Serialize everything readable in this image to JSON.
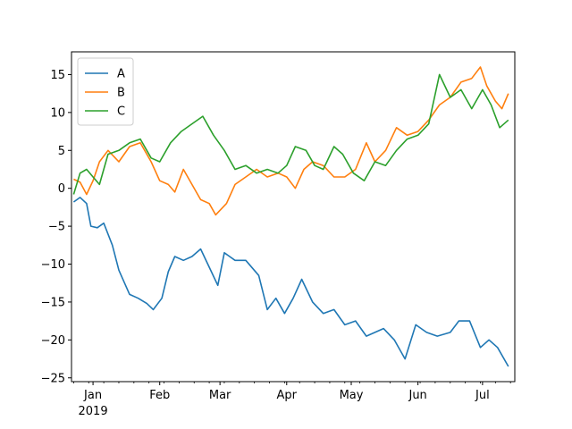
{
  "chart_data": {
    "type": "line",
    "title": "",
    "xlabel": "",
    "ylabel": "",
    "x_start": "2018-12-23",
    "x_end": "2019-07-13",
    "x_frequency": "daily",
    "xlim": [
      "2018-12-22",
      "2019-07-16"
    ],
    "ylim": [
      -25.5,
      18
    ],
    "x_major_ticks": [
      {
        "date": "2019-01-01",
        "label": "Jan",
        "sublabel": "2019"
      },
      {
        "date": "2019-02-01",
        "label": "Feb",
        "sublabel": ""
      },
      {
        "date": "2019-03-01",
        "label": "Mar",
        "sublabel": ""
      },
      {
        "date": "2019-04-01",
        "label": "Apr",
        "sublabel": ""
      },
      {
        "date": "2019-05-01",
        "label": "May",
        "sublabel": ""
      },
      {
        "date": "2019-06-01",
        "label": "Jun",
        "sublabel": ""
      },
      {
        "date": "2019-07-01",
        "label": "Jul",
        "sublabel": ""
      }
    ],
    "y_ticks": [
      {
        "value": -25,
        "label": "−25"
      },
      {
        "value": -20,
        "label": "−20"
      },
      {
        "value": -15,
        "label": "−15"
      },
      {
        "value": -10,
        "label": "−10"
      },
      {
        "value": -5,
        "label": "−5"
      },
      {
        "value": 0,
        "label": "0"
      },
      {
        "value": 5,
        "label": "5"
      },
      {
        "value": 10,
        "label": "10"
      },
      {
        "value": 15,
        "label": "15"
      }
    ],
    "grid": false,
    "legend_position": "top-left",
    "series": [
      {
        "name": "A",
        "color": "#1f77b4",
        "points": [
          [
            "2018-12-23",
            -1.8
          ],
          [
            "2018-12-26",
            -1.2
          ],
          [
            "2018-12-29",
            -2.0
          ],
          [
            "2018-12-31",
            -5.0
          ],
          [
            "2019-01-03",
            -5.2
          ],
          [
            "2019-01-06",
            -4.6
          ],
          [
            "2019-01-10",
            -7.5
          ],
          [
            "2019-01-13",
            -10.8
          ],
          [
            "2019-01-18",
            -14.0
          ],
          [
            "2019-01-22",
            -14.5
          ],
          [
            "2019-01-26",
            -15.2
          ],
          [
            "2019-01-29",
            -16.0
          ],
          [
            "2019-02-02",
            -14.5
          ],
          [
            "2019-02-05",
            -11.0
          ],
          [
            "2019-02-08",
            -9.0
          ],
          [
            "2019-02-12",
            -9.5
          ],
          [
            "2019-02-16",
            -9.0
          ],
          [
            "2019-02-20",
            -8.0
          ],
          [
            "2019-02-25",
            -11.0
          ],
          [
            "2019-02-28",
            -12.8
          ],
          [
            "2019-03-03",
            -8.5
          ],
          [
            "2019-03-08",
            -9.5
          ],
          [
            "2019-03-13",
            -9.5
          ],
          [
            "2019-03-19",
            -11.5
          ],
          [
            "2019-03-23",
            -16.0
          ],
          [
            "2019-03-27",
            -14.5
          ],
          [
            "2019-03-31",
            -16.5
          ],
          [
            "2019-04-04",
            -14.5
          ],
          [
            "2019-04-08",
            -12.0
          ],
          [
            "2019-04-13",
            -15.0
          ],
          [
            "2019-04-18",
            -16.5
          ],
          [
            "2019-04-23",
            -16.0
          ],
          [
            "2019-04-28",
            -18.0
          ],
          [
            "2019-05-03",
            -17.5
          ],
          [
            "2019-05-08",
            -19.5
          ],
          [
            "2019-05-12",
            -19.0
          ],
          [
            "2019-05-16",
            -18.5
          ],
          [
            "2019-05-21",
            -20.0
          ],
          [
            "2019-05-26",
            -22.5
          ],
          [
            "2019-05-31",
            -18.0
          ],
          [
            "2019-06-05",
            -19.0
          ],
          [
            "2019-06-10",
            -19.5
          ],
          [
            "2019-06-16",
            -19.0
          ],
          [
            "2019-06-20",
            -17.5
          ],
          [
            "2019-06-25",
            -17.5
          ],
          [
            "2019-06-30",
            -21.0
          ],
          [
            "2019-07-04",
            -20.0
          ],
          [
            "2019-07-08",
            -21.0
          ],
          [
            "2019-07-13",
            -23.5
          ]
        ]
      },
      {
        "name": "B",
        "color": "#ff7f0e",
        "points": [
          [
            "2018-12-23",
            1.2
          ],
          [
            "2018-12-26",
            0.8
          ],
          [
            "2018-12-29",
            -0.8
          ],
          [
            "2019-01-01",
            1.0
          ],
          [
            "2019-01-04",
            3.5
          ],
          [
            "2019-01-08",
            5.0
          ],
          [
            "2019-01-13",
            3.5
          ],
          [
            "2019-01-18",
            5.5
          ],
          [
            "2019-01-23",
            6.0
          ],
          [
            "2019-01-28",
            3.5
          ],
          [
            "2019-02-01",
            1.0
          ],
          [
            "2019-02-05",
            0.5
          ],
          [
            "2019-02-08",
            -0.5
          ],
          [
            "2019-02-12",
            2.5
          ],
          [
            "2019-02-16",
            0.5
          ],
          [
            "2019-02-20",
            -1.5
          ],
          [
            "2019-02-24",
            -2.0
          ],
          [
            "2019-02-27",
            -3.5
          ],
          [
            "2019-03-04",
            -2.0
          ],
          [
            "2019-03-08",
            0.5
          ],
          [
            "2019-03-13",
            1.5
          ],
          [
            "2019-03-18",
            2.5
          ],
          [
            "2019-03-23",
            1.5
          ],
          [
            "2019-03-28",
            2.0
          ],
          [
            "2019-04-01",
            1.5
          ],
          [
            "2019-04-05",
            0.0
          ],
          [
            "2019-04-09",
            2.5
          ],
          [
            "2019-04-13",
            3.5
          ],
          [
            "2019-04-18",
            3.0
          ],
          [
            "2019-04-23",
            1.5
          ],
          [
            "2019-04-28",
            1.5
          ],
          [
            "2019-05-03",
            2.5
          ],
          [
            "2019-05-08",
            6.0
          ],
          [
            "2019-05-12",
            3.5
          ],
          [
            "2019-05-17",
            5.0
          ],
          [
            "2019-05-22",
            8.0
          ],
          [
            "2019-05-27",
            7.0
          ],
          [
            "2019-06-01",
            7.5
          ],
          [
            "2019-06-06",
            9.0
          ],
          [
            "2019-06-11",
            11.0
          ],
          [
            "2019-06-16",
            12.0
          ],
          [
            "2019-06-21",
            14.0
          ],
          [
            "2019-06-26",
            14.5
          ],
          [
            "2019-06-30",
            16.0
          ],
          [
            "2019-07-03",
            13.5
          ],
          [
            "2019-07-07",
            11.5
          ],
          [
            "2019-07-10",
            10.5
          ],
          [
            "2019-07-13",
            12.5
          ]
        ]
      },
      {
        "name": "C",
        "color": "#2ca02c",
        "points": [
          [
            "2018-12-23",
            -0.8
          ],
          [
            "2018-12-26",
            2.0
          ],
          [
            "2018-12-29",
            2.5
          ],
          [
            "2019-01-01",
            1.5
          ],
          [
            "2019-01-04",
            0.5
          ],
          [
            "2019-01-08",
            4.5
          ],
          [
            "2019-01-13",
            5.0
          ],
          [
            "2019-01-18",
            6.0
          ],
          [
            "2019-01-23",
            6.5
          ],
          [
            "2019-01-28",
            4.0
          ],
          [
            "2019-02-01",
            3.5
          ],
          [
            "2019-02-06",
            6.0
          ],
          [
            "2019-02-11",
            7.5
          ],
          [
            "2019-02-16",
            8.5
          ],
          [
            "2019-02-21",
            9.5
          ],
          [
            "2019-02-26",
            7.0
          ],
          [
            "2019-03-03",
            5.0
          ],
          [
            "2019-03-08",
            2.5
          ],
          [
            "2019-03-13",
            3.0
          ],
          [
            "2019-03-18",
            2.0
          ],
          [
            "2019-03-23",
            2.5
          ],
          [
            "2019-03-28",
            2.0
          ],
          [
            "2019-04-01",
            3.0
          ],
          [
            "2019-04-05",
            5.5
          ],
          [
            "2019-04-10",
            5.0
          ],
          [
            "2019-04-14",
            3.0
          ],
          [
            "2019-04-18",
            2.5
          ],
          [
            "2019-04-23",
            5.5
          ],
          [
            "2019-04-27",
            4.5
          ],
          [
            "2019-05-02",
            2.0
          ],
          [
            "2019-05-07",
            1.0
          ],
          [
            "2019-05-12",
            3.5
          ],
          [
            "2019-05-17",
            3.0
          ],
          [
            "2019-05-22",
            5.0
          ],
          [
            "2019-05-27",
            6.5
          ],
          [
            "2019-06-01",
            7.0
          ],
          [
            "2019-06-06",
            8.5
          ],
          [
            "2019-06-11",
            15.0
          ],
          [
            "2019-06-16",
            12.0
          ],
          [
            "2019-06-21",
            13.0
          ],
          [
            "2019-06-26",
            10.5
          ],
          [
            "2019-07-01",
            13.0
          ],
          [
            "2019-07-05",
            11.0
          ],
          [
            "2019-07-09",
            8.0
          ],
          [
            "2019-07-13",
            9.0
          ]
        ]
      }
    ]
  }
}
